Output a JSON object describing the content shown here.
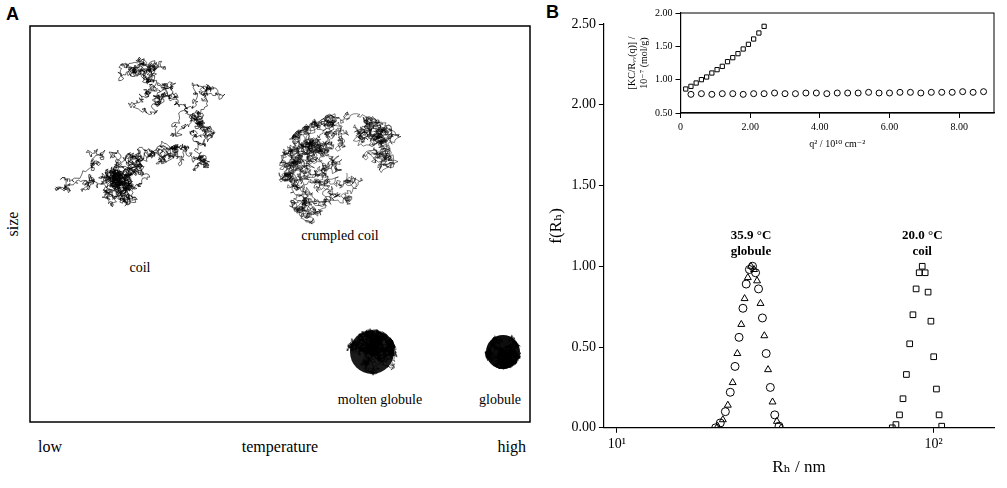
{
  "figure": {
    "panel_a": {
      "letter": "A",
      "y_label": "size",
      "x_label": "temperature",
      "x_low": "low",
      "x_high": "high",
      "states": [
        "coil",
        "crumpled coil",
        "molten globule",
        "globule"
      ]
    },
    "panel_b": {
      "letter": "B"
    }
  },
  "chart_data": [
    {
      "type": "scatter",
      "x_label": "Rₕ / nm",
      "y_label": "f(Rₕ)",
      "log": "x",
      "grid": false,
      "xlim": [
        9.1,
        155
      ],
      "xticks": [
        {
          "value": 10,
          "label": "10¹"
        },
        {
          "value": 100,
          "label": "10²"
        }
      ],
      "ylim": [
        0,
        2.5
      ],
      "yticks": [
        {
          "value": 0,
          "label": "0.00"
        },
        {
          "value": 0.5,
          "label": "0.50"
        },
        {
          "value": 1,
          "label": "1.00"
        },
        {
          "value": 1.5,
          "label": "1.50"
        },
        {
          "value": 2,
          "label": "2.00"
        },
        {
          "value": 2.5,
          "label": "2.50"
        }
      ],
      "series": [
        {
          "color": "#000000",
          "marker": "triangle",
          "x": [
            20.8,
            21.6,
            22.4,
            23.2,
            24,
            24.7,
            25.3,
            25.9,
            26.5,
            27.1,
            27.7,
            28.4,
            29.2,
            30,
            31,
            32,
            33
          ],
          "values": [
            0.01,
            0.05,
            0.14,
            0.28,
            0.46,
            0.64,
            0.8,
            0.93,
            1.0,
            0.98,
            0.91,
            0.77,
            0.57,
            0.36,
            0.16,
            0.04,
            0
          ]
        },
        {
          "color": "#000000",
          "marker": "circle",
          "x": [
            20.5,
            21.2,
            22,
            22.8,
            23.6,
            24.3,
            25,
            25.6,
            26.2,
            26.8,
            27.4,
            28,
            28.8,
            29.6,
            30.5,
            31.5,
            32.5
          ],
          "values": [
            0,
            0.03,
            0.1,
            0.22,
            0.38,
            0.56,
            0.74,
            0.89,
            0.98,
            1.0,
            0.96,
            0.86,
            0.68,
            0.46,
            0.25,
            0.08,
            0.01
          ]
        },
        {
          "color": "#000000",
          "marker": "square",
          "x": [
            74,
            76,
            78,
            80,
            82,
            84,
            86,
            88,
            90,
            92,
            94,
            96,
            98,
            100,
            102,
            104,
            106
          ],
          "values": [
            0,
            0.02,
            0.08,
            0.18,
            0.33,
            0.52,
            0.7,
            0.86,
            0.96,
            1.0,
            0.96,
            0.84,
            0.66,
            0.44,
            0.24,
            0.08,
            0.01
          ]
        }
      ],
      "annotations": [
        {
          "text": "35.9 °C",
          "x": 26.5,
          "y": 1.17
        },
        {
          "text": "globule",
          "x": 26.5,
          "y": 1.07
        },
        {
          "text": "20.0 °C",
          "x": 92,
          "y": 1.17
        },
        {
          "text": "coil",
          "x": 92,
          "y": 1.07
        }
      ]
    },
    {
      "type": "scatter",
      "x_label": "q² / 10¹⁰ cm⁻²",
      "y_label": "[KC/Rᵥᵥ(q)] / 10⁻⁷ (mol/g)",
      "grid": false,
      "xlim": [
        0,
        9
      ],
      "xticks": [
        0,
        {
          "value": 2,
          "label": "2.00"
        },
        {
          "value": 4,
          "label": "4.00"
        },
        {
          "value": 6,
          "label": "6.00"
        },
        {
          "value": 8,
          "label": "8.00"
        }
      ],
      "ylim": [
        0.5,
        2.0
      ],
      "yticks": [
        {
          "value": 0.5,
          "label": "0.50"
        },
        {
          "value": 1,
          "label": "1.00"
        },
        {
          "value": 1.5,
          "label": "1.50"
        },
        {
          "value": 2,
          "label": "2.00"
        }
      ],
      "series": [
        {
          "color": "#000000",
          "marker": "square",
          "x": [
            0.15,
            0.3,
            0.45,
            0.6,
            0.75,
            0.9,
            1.05,
            1.2,
            1.35,
            1.5,
            1.65,
            1.8,
            1.95,
            2.1,
            2.25,
            2.4
          ],
          "values": [
            0.86,
            0.9,
            0.95,
            1.0,
            1.04,
            1.1,
            1.15,
            1.2,
            1.27,
            1.33,
            1.39,
            1.46,
            1.53,
            1.61,
            1.7,
            1.8
          ]
        },
        {
          "color": "#000000",
          "marker": "circle",
          "x": [
            0.3,
            0.6,
            0.9,
            1.2,
            1.5,
            1.8,
            2.1,
            2.4,
            2.7,
            3.0,
            3.3,
            3.6,
            3.9,
            4.2,
            4.5,
            4.8,
            5.1,
            5.4,
            5.7,
            6.0,
            6.3,
            6.6,
            6.9,
            7.2,
            7.5,
            7.8,
            8.1,
            8.4,
            8.7
          ],
          "values": [
            0.78,
            0.79,
            0.78,
            0.79,
            0.79,
            0.78,
            0.79,
            0.79,
            0.8,
            0.79,
            0.79,
            0.8,
            0.8,
            0.79,
            0.8,
            0.8,
            0.8,
            0.81,
            0.8,
            0.8,
            0.81,
            0.81,
            0.8,
            0.81,
            0.81,
            0.81,
            0.82,
            0.81,
            0.82
          ]
        }
      ]
    }
  ]
}
